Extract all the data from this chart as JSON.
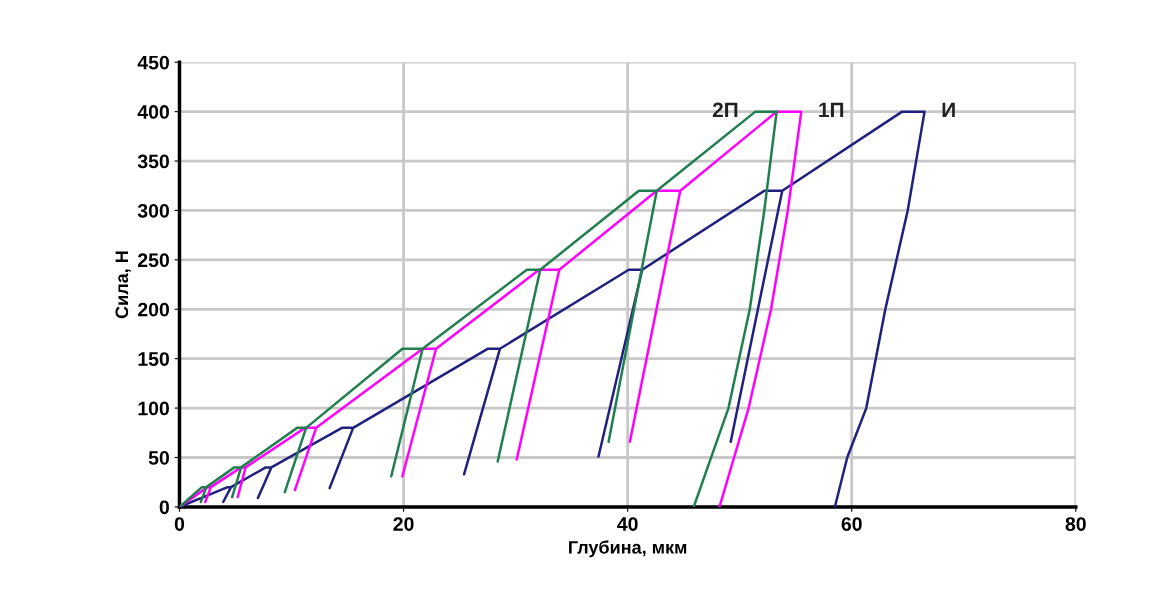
{
  "chart_data": {
    "type": "line",
    "xlabel": "Глубина, мкм",
    "ylabel": "Сила, Н",
    "xlim": [
      0,
      80
    ],
    "xticks": [
      0,
      20,
      40,
      60,
      80
    ],
    "ylim": [
      0,
      450
    ],
    "yticks": [
      0,
      50,
      100,
      150,
      200,
      250,
      300,
      350,
      400,
      450
    ],
    "grid": true,
    "marker": "none",
    "line_style": "solid",
    "series": [
      {
        "name": "И",
        "color": "#20207f",
        "x": [
          0,
          4.3,
          4.6,
          3.9,
          4.6,
          7.7,
          8.2,
          7.0,
          8.2,
          14.5,
          15.5,
          13.4,
          15.5,
          27.5,
          28.6,
          25.4,
          28.6,
          40.1,
          41.3,
          37.4,
          41.3,
          52.2,
          53.8,
          49.2,
          53.8,
          64.5,
          66.5,
          65,
          63,
          61.3,
          59.6,
          58.5
        ],
        "values": [
          0,
          20,
          20,
          5,
          20,
          40,
          40,
          9,
          40,
          80,
          80,
          19,
          80,
          160,
          160,
          33,
          160,
          240,
          240,
          51,
          240,
          320,
          320,
          66,
          320,
          400,
          400,
          300,
          200,
          100,
          50,
          0
        ]
      },
      {
        "name": "1П",
        "color": "#ff00ff",
        "x": [
          0,
          2.5,
          2.8,
          2.3,
          2.8,
          5.5,
          5.9,
          5.2,
          5.9,
          11.2,
          12.2,
          10.3,
          12.2,
          21.7,
          22.9,
          19.9,
          22.9,
          32.1,
          33.9,
          30.1,
          33.9,
          42.6,
          44.7,
          40.2,
          44.7,
          53.3,
          55.5,
          54.3,
          52.8,
          50.8,
          48.2
        ],
        "values": [
          0,
          20,
          20,
          5,
          20,
          40,
          40,
          10,
          40,
          80,
          80,
          17,
          80,
          160,
          160,
          31,
          160,
          240,
          240,
          48,
          240,
          320,
          320,
          66,
          320,
          400,
          400,
          300,
          200,
          100,
          0
        ]
      },
      {
        "name": "2П",
        "color": "#1f7f4f",
        "x": [
          0,
          2.0,
          2.4,
          1.9,
          2.4,
          4.9,
          5.5,
          4.7,
          5.5,
          10.5,
          11.3,
          9.4,
          11.3,
          19.9,
          21.7,
          18.9,
          21.7,
          31.0,
          32.2,
          28.4,
          32.2,
          41.0,
          42.6,
          38.3,
          42.6,
          51.4,
          53.3,
          52.2,
          50.9,
          49.0,
          45.9
        ],
        "values": [
          0,
          20,
          20,
          5,
          20,
          40,
          40,
          10,
          40,
          80,
          80,
          15,
          80,
          160,
          160,
          31,
          160,
          240,
          240,
          46,
          240,
          320,
          320,
          66,
          320,
          400,
          400,
          300,
          200,
          100,
          0
        ]
      }
    ]
  }
}
